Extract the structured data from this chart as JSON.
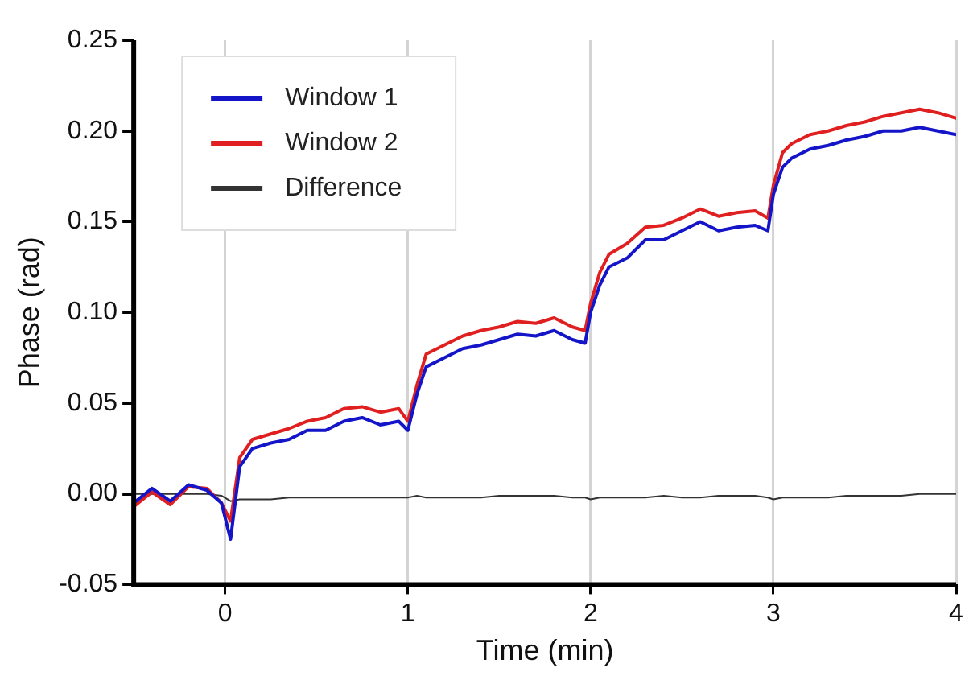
{
  "chart_data": {
    "type": "line",
    "xlabel": "Time (min)",
    "ylabel": "Phase (rad)",
    "x": [
      -0.5,
      -0.4,
      -0.3,
      -0.2,
      -0.1,
      -0.02,
      0.03,
      0.08,
      0.15,
      0.25,
      0.35,
      0.45,
      0.55,
      0.65,
      0.75,
      0.85,
      0.95,
      1.0,
      1.05,
      1.1,
      1.2,
      1.3,
      1.4,
      1.5,
      1.6,
      1.7,
      1.8,
      1.9,
      1.97,
      2.0,
      2.05,
      2.1,
      2.2,
      2.3,
      2.4,
      2.5,
      2.6,
      2.7,
      2.8,
      2.9,
      2.97,
      3.0,
      3.05,
      3.1,
      3.2,
      3.3,
      3.4,
      3.5,
      3.6,
      3.7,
      3.8,
      3.9,
      4.0
    ],
    "series": [
      {
        "name": "Window 1",
        "color": "#1414c8",
        "values": [
          -0.005,
          0.003,
          -0.004,
          0.005,
          0.002,
          -0.005,
          -0.025,
          0.015,
          0.025,
          0.028,
          0.03,
          0.035,
          0.035,
          0.04,
          0.042,
          0.038,
          0.04,
          0.035,
          0.055,
          0.07,
          0.075,
          0.08,
          0.082,
          0.085,
          0.088,
          0.087,
          0.09,
          0.085,
          0.083,
          0.1,
          0.115,
          0.125,
          0.13,
          0.14,
          0.14,
          0.145,
          0.15,
          0.145,
          0.147,
          0.148,
          0.145,
          0.165,
          0.18,
          0.185,
          0.19,
          0.192,
          0.195,
          0.197,
          0.2,
          0.2,
          0.202,
          0.2,
          0.198
        ]
      },
      {
        "name": "Window 2",
        "color": "#e02020",
        "values": [
          -0.007,
          0.001,
          -0.006,
          0.004,
          0.003,
          -0.005,
          -0.015,
          0.02,
          0.03,
          0.033,
          0.036,
          0.04,
          0.042,
          0.047,
          0.048,
          0.045,
          0.047,
          0.04,
          0.06,
          0.077,
          0.082,
          0.087,
          0.09,
          0.092,
          0.095,
          0.094,
          0.097,
          0.092,
          0.09,
          0.105,
          0.122,
          0.132,
          0.138,
          0.147,
          0.148,
          0.152,
          0.157,
          0.153,
          0.155,
          0.156,
          0.152,
          0.17,
          0.188,
          0.193,
          0.198,
          0.2,
          0.203,
          0.205,
          0.208,
          0.21,
          0.212,
          0.21,
          0.207
        ]
      },
      {
        "name": "Difference",
        "color": "#333333",
        "values": [
          0,
          0,
          0,
          0,
          0,
          -0.001,
          -0.004,
          -0.003,
          -0.003,
          -0.003,
          -0.002,
          -0.002,
          -0.002,
          -0.002,
          -0.002,
          -0.002,
          -0.002,
          -0.002,
          -0.001,
          -0.002,
          -0.002,
          -0.002,
          -0.002,
          -0.001,
          -0.001,
          -0.001,
          -0.001,
          -0.002,
          -0.002,
          -0.003,
          -0.002,
          -0.002,
          -0.002,
          -0.002,
          -0.001,
          -0.002,
          -0.002,
          -0.001,
          -0.001,
          -0.001,
          -0.002,
          -0.003,
          -0.002,
          -0.002,
          -0.002,
          -0.002,
          -0.001,
          -0.001,
          -0.001,
          -0.001,
          0,
          0,
          0
        ]
      }
    ],
    "xlim": [
      -0.5,
      4
    ],
    "xticks": [
      0,
      1,
      2,
      3,
      4
    ],
    "ylim": [
      -0.05,
      0.25
    ],
    "yticks": [
      {
        "value": -0.05,
        "label": "-0.05"
      },
      {
        "value": 0,
        "label": "0.00"
      },
      {
        "value": 0.05,
        "label": "0.05"
      },
      {
        "value": 0.1,
        "label": "0.10"
      },
      {
        "value": 0.15,
        "label": "0.15"
      },
      {
        "value": 0.2,
        "label": "0.20"
      },
      {
        "value": 0.25,
        "label": "0.25"
      }
    ],
    "grid": "x",
    "legend": "top left",
    "marker": "none",
    "line_style": "solid"
  }
}
